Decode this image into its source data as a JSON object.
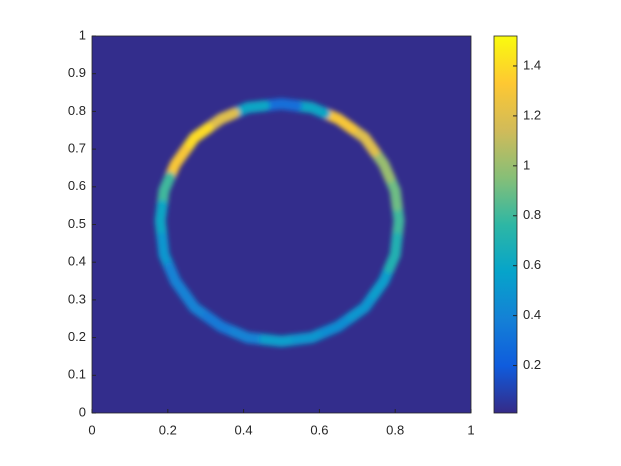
{
  "chart_data": {
    "type": "heatmap",
    "xlim": [
      0,
      1
    ],
    "ylim": [
      0,
      1
    ],
    "xticks": [
      0,
      0.2,
      0.4,
      0.6,
      0.8,
      1
    ],
    "yticks": [
      0,
      0.1,
      0.2,
      0.3,
      0.4,
      0.5,
      0.6,
      0.7,
      0.8,
      0.9,
      1
    ],
    "background_value": 0.02,
    "x": [
      0.81,
      0.8,
      0.77,
      0.72,
      0.65,
      0.58,
      0.5,
      0.41,
      0.34,
      0.27,
      0.22,
      0.19,
      0.18,
      0.19,
      0.22,
      0.27,
      0.34,
      0.41,
      0.5,
      0.58,
      0.65,
      0.72,
      0.77,
      0.8
    ],
    "y": [
      0.51,
      0.59,
      0.66,
      0.73,
      0.78,
      0.81,
      0.82,
      0.81,
      0.78,
      0.73,
      0.66,
      0.59,
      0.51,
      0.42,
      0.35,
      0.28,
      0.23,
      0.2,
      0.19,
      0.2,
      0.23,
      0.28,
      0.35,
      0.42
    ],
    "values": [
      0.8,
      0.9,
      1.0,
      1.2,
      1.3,
      0.6,
      0.3,
      0.6,
      1.2,
      1.4,
      1.3,
      0.8,
      0.6,
      0.5,
      0.4,
      0.4,
      0.35,
      0.4,
      0.55,
      0.5,
      0.45,
      0.5,
      0.55,
      0.7
    ],
    "clim": [
      0.01,
      1.52
    ],
    "cticks": [
      0.2,
      0.4,
      0.6,
      0.8,
      1,
      1.2,
      1.4
    ],
    "colormap": [
      "#352a87",
      "#0f5cdd",
      "#1481d6",
      "#06a4ca",
      "#2eb7a4",
      "#87bf77",
      "#d1bb59",
      "#fec832",
      "#f9fb0e"
    ]
  }
}
